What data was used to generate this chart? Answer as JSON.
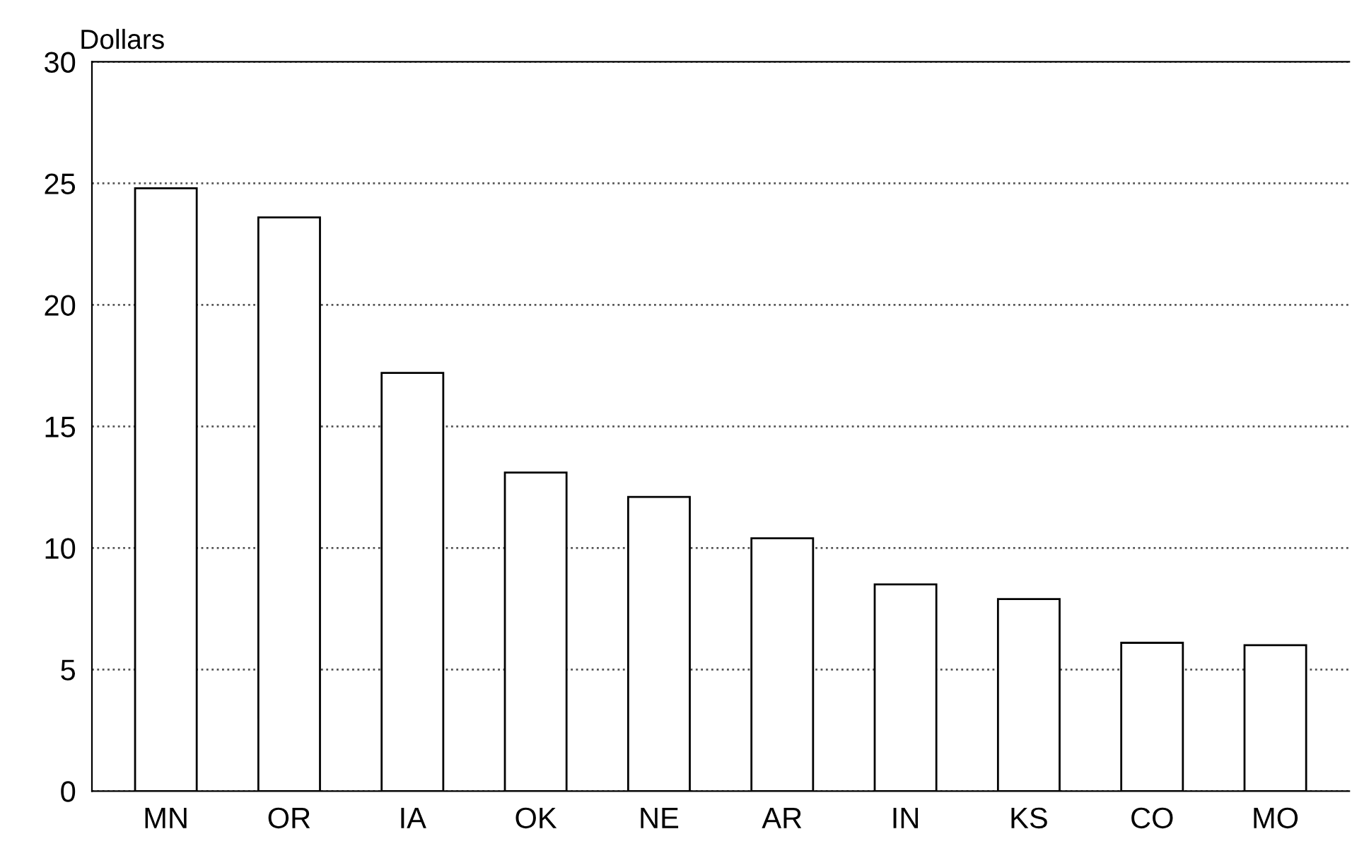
{
  "chart_data": {
    "type": "bar",
    "ylabel": "Dollars",
    "categories": [
      "MN",
      "OR",
      "IA",
      "OK",
      "NE",
      "AR",
      "IN",
      "KS",
      "CO",
      "MO"
    ],
    "values": [
      24.8,
      23.6,
      17.2,
      13.1,
      12.1,
      10.4,
      8.5,
      7.9,
      6.1,
      6.0
    ],
    "color": "#ffffff",
    "ylim": [
      0,
      30
    ],
    "yticks": [
      0,
      5,
      10,
      15,
      20,
      25,
      30
    ],
    "grid": "y"
  }
}
